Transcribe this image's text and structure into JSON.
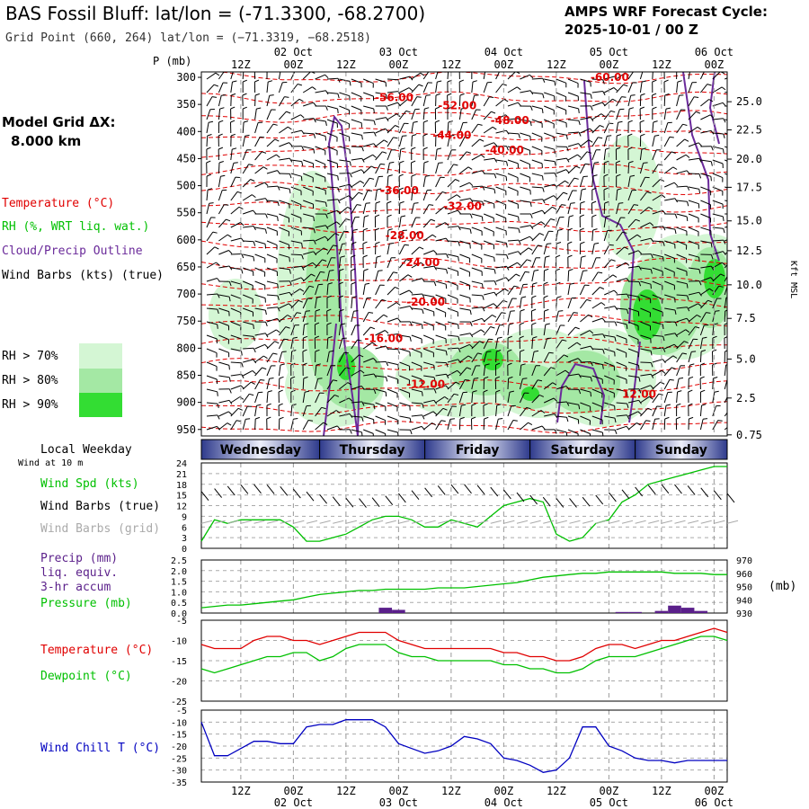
{
  "header": {
    "title": "BAS Fossil Bluff:  lat/lon = (-71.3300, -68.2700)",
    "grid_point": "Grid Point (660, 264) lat/lon = (−71.3319, −68.2518)",
    "cycle_line1": "AMPS WRF Forecast Cycle:",
    "cycle_line2": "2025-10-01 / 00  Z",
    "model_grid_line1": "Model Grid ΔX:",
    "model_grid_line2": "8.000 km"
  },
  "colors": {
    "temperature": "#e00000",
    "rh": "#00c000",
    "cloud_outline": "#6a2a9a",
    "wind_chill": "#0000c0",
    "dewpoint": "#00c000",
    "rh70": "#d4f6d4",
    "rh80": "#a4e8a4",
    "rh90": "#33dd33",
    "precip_bar": "#5a1f8a",
    "grid_barbs": "#aaaaaa"
  },
  "time_axis": {
    "top_dates": [
      "02 Oct",
      "03 Oct",
      "04 Oct",
      "05 Oct",
      "06 Oct"
    ],
    "hour_labels": [
      "12Z",
      "00Z",
      "12Z",
      "00Z",
      "12Z",
      "00Z",
      "12Z",
      "00Z",
      "12Z",
      "00Z"
    ],
    "bottom_dates": [
      "02 Oct",
      "03 Oct",
      "04 Oct",
      "05 Oct",
      "06 Oct"
    ],
    "forecast_hours": [
      0,
      120
    ]
  },
  "legend": {
    "temperature": "Temperature (°C)",
    "rh": "RH (%, WRT liq. wat.)",
    "cloud": "Cloud/Precip Outline",
    "wind_barbs": "Wind Barbs (kts) (true)",
    "rh70": "RH > 70%",
    "rh80": "RH > 80%",
    "rh90": "RH > 90%",
    "local_weekday": "Local Weekday",
    "wind_at_10m": "Wind at 10 m",
    "wind_spd": "Wind Spd (kts)",
    "wind_barbs_true": "Wind Barbs (true)",
    "wind_barbs_grid": "Wind Barbs (grid)",
    "precip_1": "Precip (mm)",
    "precip_2": "liq. equiv.",
    "precip_3": "3-hr accum",
    "pressure": "Pressure (mb)",
    "pressure_unit": "(mb)",
    "temp2": "Temperature (°C)",
    "dewpoint": "Dewpoint (°C)",
    "wind_chill": "Wind Chill T (°C)"
  },
  "weekdays": [
    "Wednesday",
    "Thursday",
    "Friday",
    "Saturday",
    "Sunday"
  ],
  "chart_data": [
    {
      "type": "heatmap",
      "name": "cross-section",
      "ylabel_left": "P (mb)",
      "ylabel_right": "Kft MSL",
      "y_pressure_ticks": [
        300,
        350,
        400,
        450,
        500,
        550,
        600,
        650,
        700,
        750,
        800,
        850,
        900,
        950
      ],
      "y_height_ticks": [
        "25.0",
        "22.5",
        "20.0",
        "17.5",
        "15.0",
        "12.5",
        "10.0",
        "7.5",
        "5.0",
        "2.5",
        "0.75"
      ],
      "y_height_pressures": [
        345,
        397,
        451,
        503,
        565,
        620,
        683,
        745,
        820,
        892,
        960
      ],
      "ylim": [
        290,
        962
      ],
      "isotherm_labels": [
        {
          "t": "-56.00",
          "x": 33,
          "p": 337
        },
        {
          "t": "-52.00",
          "x": 45,
          "p": 352
        },
        {
          "t": "-48.00",
          "x": 55,
          "p": 380
        },
        {
          "t": "-44.00",
          "x": 44,
          "p": 407
        },
        {
          "t": "-40.00",
          "x": 54,
          "p": 434
        },
        {
          "t": "-60.00",
          "x": 74,
          "p": 300
        },
        {
          "t": "-36.00",
          "x": 34,
          "p": 509
        },
        {
          "t": "-32.00",
          "x": 46,
          "p": 538
        },
        {
          "t": "-28.00",
          "x": 35,
          "p": 592
        },
        {
          "t": "-24.00",
          "x": 38,
          "p": 642
        },
        {
          "t": "-20.00",
          "x": 39,
          "p": 715
        },
        {
          "t": "-16.00",
          "x": 31,
          "p": 782
        },
        {
          "t": "-12.00",
          "x": 39,
          "p": 867
        },
        {
          "t": "12.00",
          "x": 80,
          "p": 885
        }
      ],
      "isotherm_levels": [
        300,
        338,
        372,
        405,
        437,
        470,
        505,
        540,
        575,
        610,
        645,
        680,
        715,
        750,
        790,
        830,
        870,
        910,
        945
      ]
    },
    {
      "type": "line",
      "name": "wind speed",
      "ylim": [
        0,
        24
      ],
      "yticks": [
        0,
        3,
        6,
        9,
        12,
        15,
        18,
        21,
        24
      ],
      "x": [
        0,
        3,
        6,
        9,
        12,
        15,
        18,
        21,
        24,
        27,
        30,
        33,
        36,
        39,
        42,
        45,
        48,
        51,
        54,
        57,
        60,
        63,
        66,
        69,
        72,
        75,
        78,
        81,
        84,
        87,
        90,
        93,
        96,
        99,
        102,
        105,
        108,
        111,
        114,
        117,
        120
      ],
      "series": [
        {
          "name": "Wind Spd (kts)",
          "values": [
            2,
            8,
            7,
            8,
            8,
            8,
            8,
            6,
            2,
            2,
            3,
            4,
            6,
            8,
            9,
            9,
            8,
            6,
            6,
            8,
            7,
            6,
            9,
            12,
            13,
            14,
            13,
            4,
            2,
            3,
            7,
            8,
            13,
            15,
            18,
            19,
            20,
            21,
            22,
            23,
            23
          ]
        }
      ]
    },
    {
      "type": "bar",
      "name": "precip and pressure",
      "ylim_left": [
        0,
        2.5
      ],
      "yticks_left": [
        "0.0",
        "0.5",
        "1.0",
        "1.5",
        "2.0",
        "2.5"
      ],
      "ylim_right": [
        930,
        970
      ],
      "yticks_right": [
        930,
        940,
        950,
        960,
        970
      ],
      "precip_bars": [
        {
          "x": 42,
          "value": 0.25
        },
        {
          "x": 45,
          "value": 0.15
        },
        {
          "x": 96,
          "value": 0.05
        },
        {
          "x": 99,
          "value": 0.05
        },
        {
          "x": 105,
          "value": 0.1
        },
        {
          "x": 108,
          "value": 0.35
        },
        {
          "x": 111,
          "value": 0.25
        },
        {
          "x": 114,
          "value": 0.1
        }
      ],
      "pressure": [
        934,
        935,
        936,
        936,
        937,
        938,
        939,
        940,
        942,
        944,
        945,
        946,
        947,
        947,
        948,
        948,
        948,
        948,
        949,
        949,
        949,
        950,
        951,
        952,
        953,
        955,
        957,
        958,
        959,
        960,
        960,
        961,
        961,
        961,
        961,
        961,
        960,
        960,
        960,
        959,
        959
      ]
    },
    {
      "type": "line",
      "name": "temperature and dewpoint",
      "ylim": [
        -25,
        -5
      ],
      "yticks": [
        -25,
        -20,
        -15,
        -10,
        -5
      ],
      "series": [
        {
          "name": "Temperature (°C)",
          "values": [
            -11,
            -12,
            -12,
            -12,
            -10,
            -9,
            -9,
            -10,
            -10,
            -11,
            -10,
            -9,
            -8,
            -8,
            -8,
            -10,
            -11,
            -12,
            -12,
            -12,
            -12,
            -12,
            -12,
            -13,
            -13,
            -14,
            -14,
            -15,
            -15,
            -14,
            -12,
            -11,
            -11,
            -12,
            -11,
            -10,
            -10,
            -9,
            -8,
            -7,
            -8
          ]
        },
        {
          "name": "Dewpoint (°C)",
          "values": [
            -17,
            -18,
            -17,
            -16,
            -15,
            -14,
            -14,
            -13,
            -13,
            -15,
            -14,
            -12,
            -11,
            -11,
            -11,
            -13,
            -14,
            -14,
            -15,
            -15,
            -15,
            -15,
            -15,
            -16,
            -16,
            -17,
            -17,
            -18,
            -18,
            -17,
            -15,
            -14,
            -14,
            -14,
            -13,
            -12,
            -11,
            -10,
            -9,
            -9,
            -10
          ]
        }
      ]
    },
    {
      "type": "line",
      "name": "wind chill",
      "ylim": [
        -35,
        -5
      ],
      "yticks": [
        -35,
        -30,
        -25,
        -20,
        -15,
        -10,
        -5
      ],
      "series": [
        {
          "name": "Wind Chill T (°C)",
          "values": [
            -10,
            -24,
            -24,
            -21,
            -18,
            -18,
            -19,
            -19,
            -12,
            -11,
            -11,
            -9,
            -9,
            -9,
            -12,
            -19,
            -21,
            -23,
            -22,
            -20,
            -16,
            -17,
            -19,
            -25,
            -26,
            -28,
            -31,
            -30,
            -25,
            -12,
            -12,
            -20,
            -22,
            -25,
            -26,
            -26,
            -27,
            -26,
            -26,
            -26,
            -26
          ]
        }
      ]
    }
  ]
}
